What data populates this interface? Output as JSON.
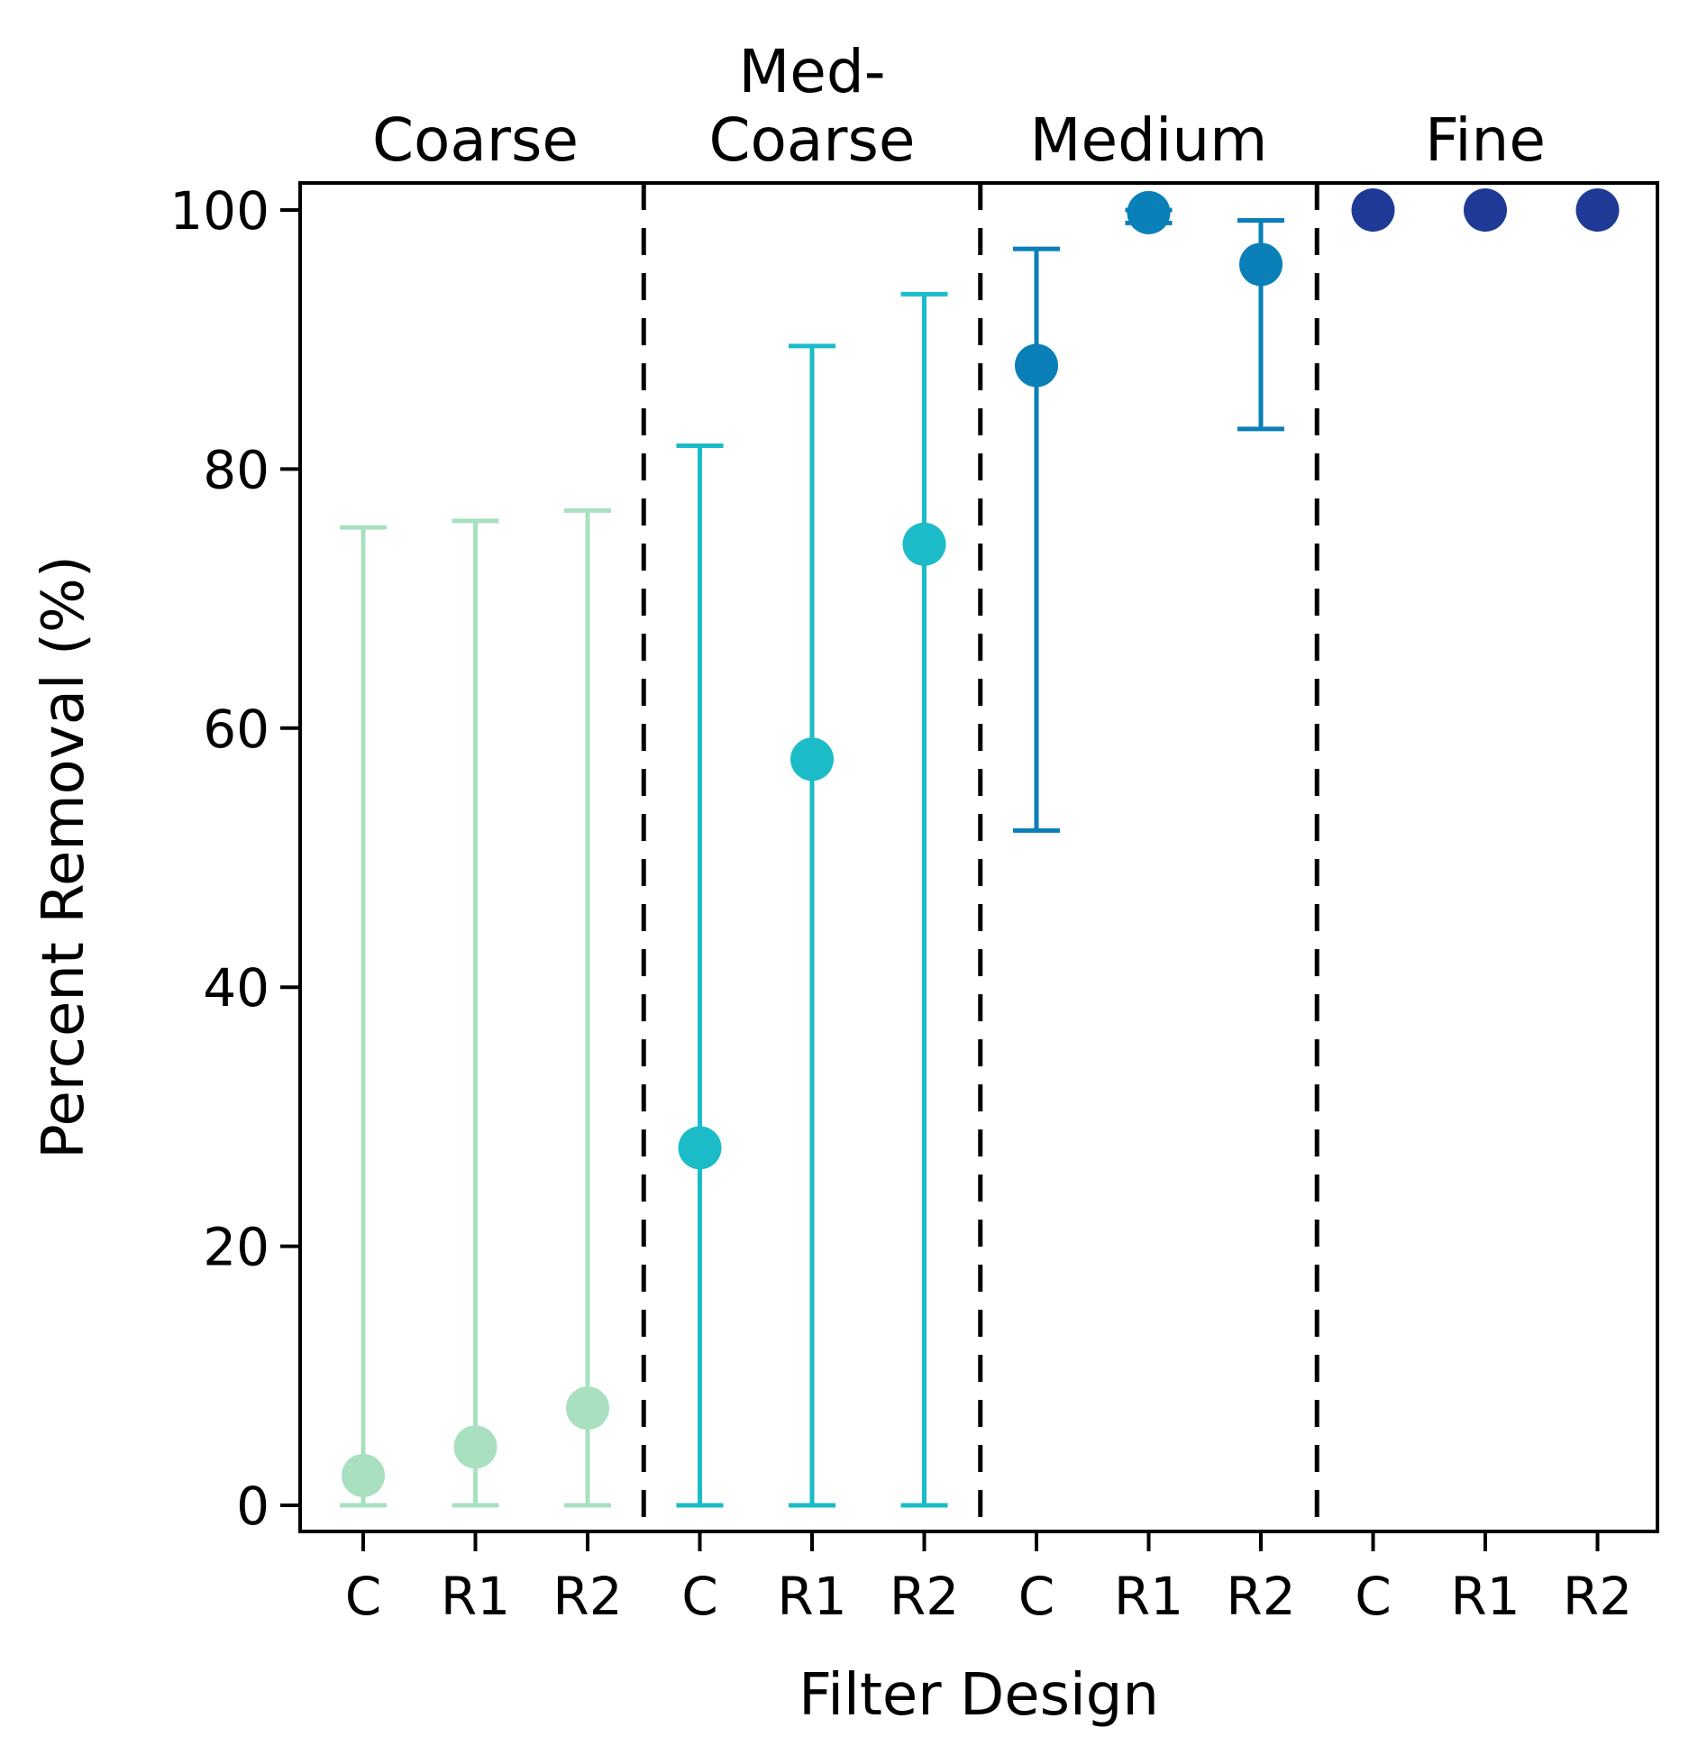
{
  "chart_data": {
    "type": "scatter",
    "subtype": "point-with-error-bars",
    "xlabel": "Filter Design",
    "ylabel": "Percent Removal (%)",
    "ylim": [
      -2,
      102
    ],
    "yticks": [
      0,
      20,
      40,
      60,
      80,
      100
    ],
    "grid": false,
    "categories": [
      "C",
      "R1",
      "R2",
      "C",
      "R1",
      "R2",
      "C",
      "R1",
      "R2",
      "C",
      "R1",
      "R2"
    ],
    "groups": [
      {
        "name": "Coarse",
        "name_lines": [
          "Coarse"
        ],
        "color": "#a8e0c0",
        "points": [
          {
            "label": "C",
            "value": 2.3,
            "err_low": 0,
            "err_high": 75.5
          },
          {
            "label": "R1",
            "value": 4.5,
            "err_low": 0,
            "err_high": 76.0
          },
          {
            "label": "R2",
            "value": 7.5,
            "err_low": 0,
            "err_high": 76.8
          }
        ]
      },
      {
        "name": "Med-Coarse",
        "name_lines": [
          "Med-",
          "Coarse"
        ],
        "color": "#1bbcc8",
        "points": [
          {
            "label": "C",
            "value": 27.6,
            "err_low": 0,
            "err_high": 81.8
          },
          {
            "label": "R1",
            "value": 57.6,
            "err_low": 0,
            "err_high": 89.5
          },
          {
            "label": "R2",
            "value": 74.2,
            "err_low": 0,
            "err_high": 93.5
          }
        ]
      },
      {
        "name": "Medium",
        "name_lines": [
          "Medium"
        ],
        "color": "#0a7fb8",
        "points": [
          {
            "label": "C",
            "value": 88.0,
            "err_low": 52.1,
            "err_high": 97.0
          },
          {
            "label": "R1",
            "value": 99.8,
            "err_low": 99.0,
            "err_high": 100.0
          },
          {
            "label": "R2",
            "value": 95.8,
            "err_low": 83.1,
            "err_high": 99.2
          }
        ]
      },
      {
        "name": "Fine",
        "name_lines": [
          "Fine"
        ],
        "color": "#1f3a96",
        "points": [
          {
            "label": "C",
            "value": 100.0,
            "err_low": 100.0,
            "err_high": 100.0
          },
          {
            "label": "R1",
            "value": 100.0,
            "err_low": 100.0,
            "err_high": 100.0
          },
          {
            "label": "R2",
            "value": 100.0,
            "err_low": 100.0,
            "err_high": 100.0
          }
        ]
      }
    ],
    "separators": "dashed vertical lines between groups"
  }
}
